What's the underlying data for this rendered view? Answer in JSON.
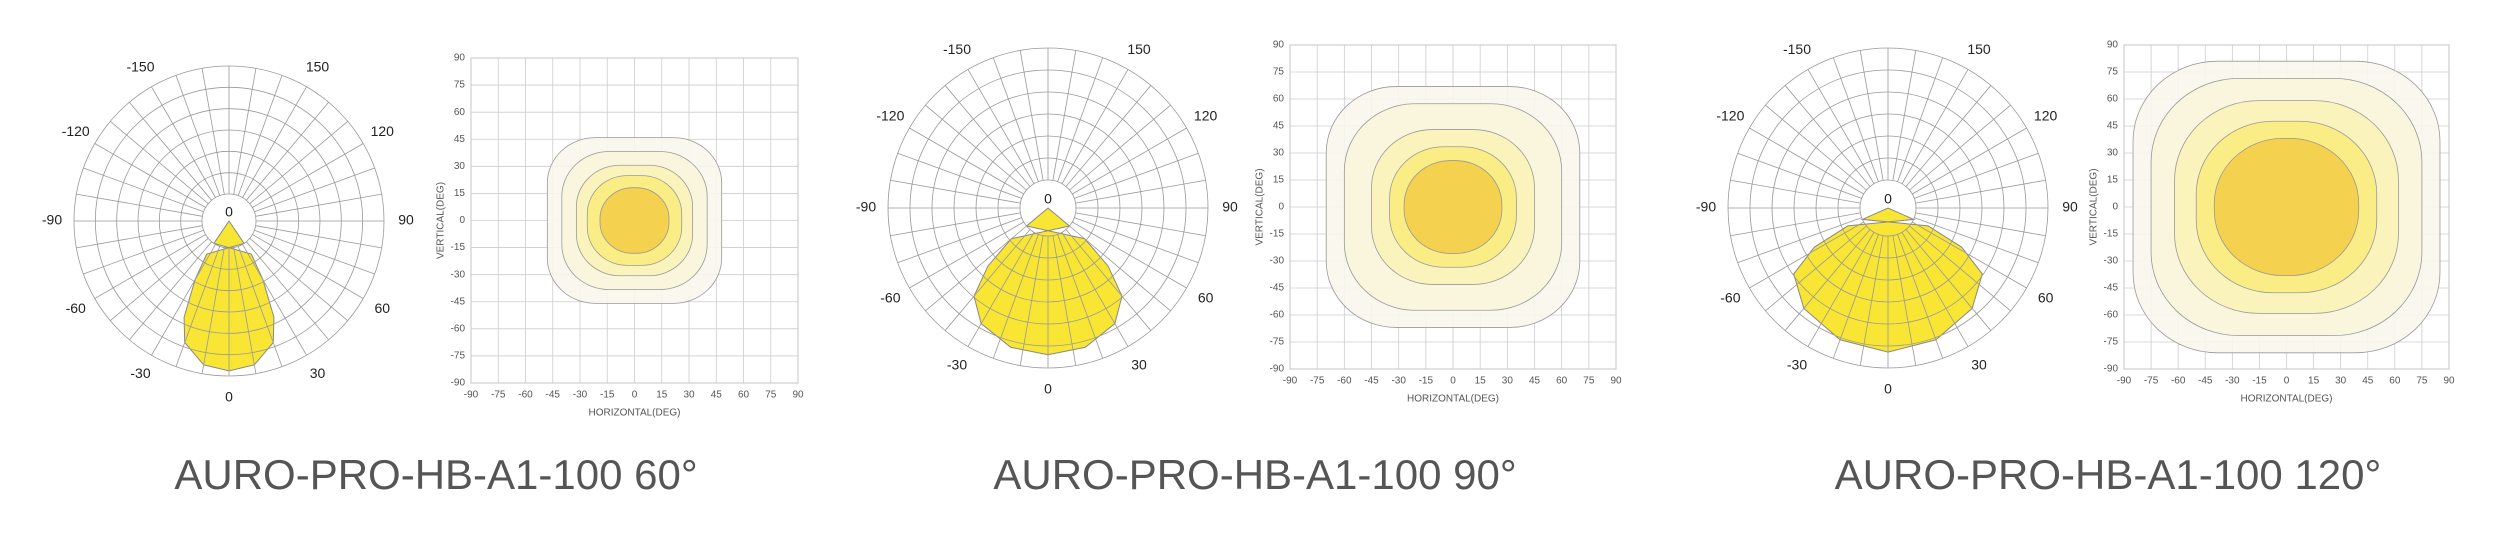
{
  "panels": [
    {
      "caption": "AURO-PRO-HB-A1-100 60°",
      "polar": {
        "labels": [
          -150,
          150,
          -120,
          120,
          -90,
          90,
          -60,
          60,
          -30,
          30,
          0
        ],
        "center_label": 0
      },
      "isolux": {
        "x_label": "HORIZONTAL(DEG)",
        "y_label": "VERTICAL(DEG)",
        "xticks": [
          -90,
          -75,
          -60,
          -45,
          -30,
          -15,
          0,
          15,
          30,
          45,
          60,
          75,
          90
        ],
        "yticks": [
          90,
          75,
          60,
          45,
          30,
          15,
          0,
          -15,
          -30,
          -45,
          -60,
          -75,
          -90
        ]
      }
    },
    {
      "caption": "AURO-PRO-HB-A1-100 90°",
      "polar": {
        "labels": [
          -150,
          150,
          -120,
          120,
          -90,
          90,
          -60,
          60,
          -30,
          30,
          0
        ],
        "center_label": 0
      },
      "isolux": {
        "x_label": "HORIZONTAL(DEG)",
        "y_label": "VERTICAL(DEG)",
        "xticks": [
          -90,
          -75,
          -60,
          -45,
          -30,
          -15,
          0,
          15,
          30,
          45,
          60,
          75,
          90
        ],
        "yticks": [
          90,
          75,
          60,
          45,
          30,
          15,
          0,
          -15,
          -30,
          -45,
          -60,
          -75,
          -90
        ]
      }
    },
    {
      "caption": "AURO-PRO-HB-A1-100 120°",
      "polar": {
        "labels": [
          -150,
          150,
          -120,
          120,
          -90,
          90,
          -60,
          60,
          -30,
          30,
          0
        ],
        "center_label": 0
      },
      "isolux": {
        "x_label": "HORIZONTAL(DEG)",
        "y_label": "VERTICAL(DEG)",
        "xticks": [
          -90,
          -75,
          -60,
          -45,
          -30,
          -15,
          0,
          15,
          30,
          45,
          60,
          75,
          90
        ],
        "yticks": [
          90,
          75,
          60,
          45,
          30,
          15,
          0,
          -15,
          -30,
          -45,
          -60,
          -75,
          -90
        ]
      }
    }
  ]
}
